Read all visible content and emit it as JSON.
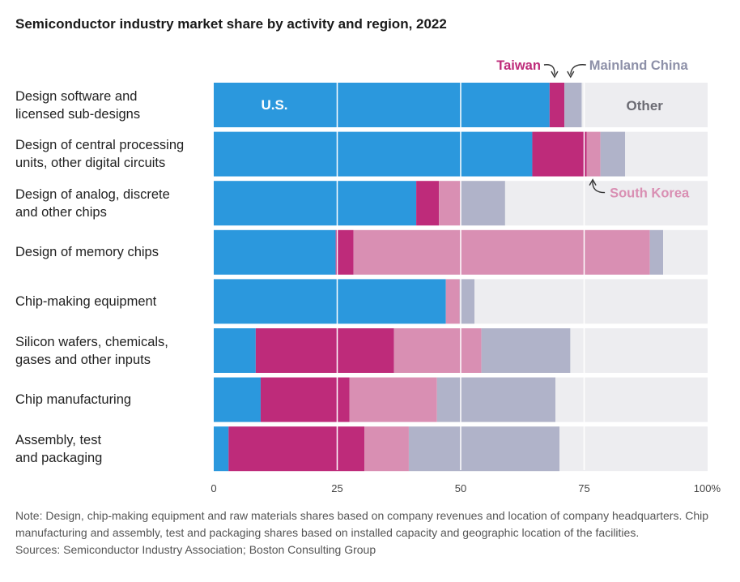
{
  "title": "Semiconductor industry market share by activity and region, 2022",
  "note": "Note: Design, chip-making equipment and raw materials shares based on company revenues and location of company headquarters. Chip manufacturing and assembly, test and packaging shares based on installed capacity and geographic location of the facilities.",
  "sources": "Sources: Semiconductor Industry Association; Boston Consulting Group",
  "colors": {
    "us": "#2b98dd",
    "taiwan": "#be2b7a",
    "south_korea": "#d98fb3",
    "mainland_china": "#b0b3c9",
    "other": "#ededf0"
  },
  "chart_data": {
    "type": "bar",
    "orientation": "horizontal",
    "stacked": true,
    "title": "Semiconductor industry market share by activity and region, 2022",
    "categories": [
      [
        "Design software and",
        "licensed sub-designs"
      ],
      [
        "Design of central processing",
        "units, other digital circuits"
      ],
      [
        "Design of analog, discrete",
        "and other chips"
      ],
      [
        "Design of memory chips"
      ],
      [
        "Chip-making equipment"
      ],
      [
        "Silicon wafers, chemicals,",
        "gases and other inputs"
      ],
      [
        "Chip manufacturing"
      ],
      [
        "Assembly, test",
        "and packaging"
      ]
    ],
    "series": [
      {
        "name": "U.S.",
        "key": "us",
        "values": [
          68,
          64.5,
          41,
          24.7,
          47,
          8.5,
          9.5,
          3
        ]
      },
      {
        "name": "Taiwan",
        "key": "taiwan",
        "values": [
          3,
          11,
          4.6,
          3.6,
          0,
          28,
          18,
          27.5
        ]
      },
      {
        "name": "South Korea",
        "key": "south_korea",
        "values": [
          0,
          2.8,
          4.4,
          60,
          2.8,
          17.7,
          17.7,
          9
        ]
      },
      {
        "name": "Mainland China",
        "key": "mainland_china",
        "values": [
          3.5,
          5,
          9,
          2.7,
          3,
          18,
          24,
          30.5
        ]
      },
      {
        "name": "Other",
        "key": "other",
        "values": [
          25.5,
          16.7,
          41,
          9,
          47.2,
          27.8,
          30.8,
          30
        ]
      }
    ],
    "xlim": [
      0,
      100
    ],
    "xticks": [
      "0",
      "25",
      "50",
      "75",
      "100%"
    ],
    "grid": true,
    "annotations": {
      "us": "U.S.",
      "taiwan": "Taiwan",
      "mainland_china": "Mainland China",
      "south_korea": "South Korea",
      "other": "Other"
    }
  }
}
